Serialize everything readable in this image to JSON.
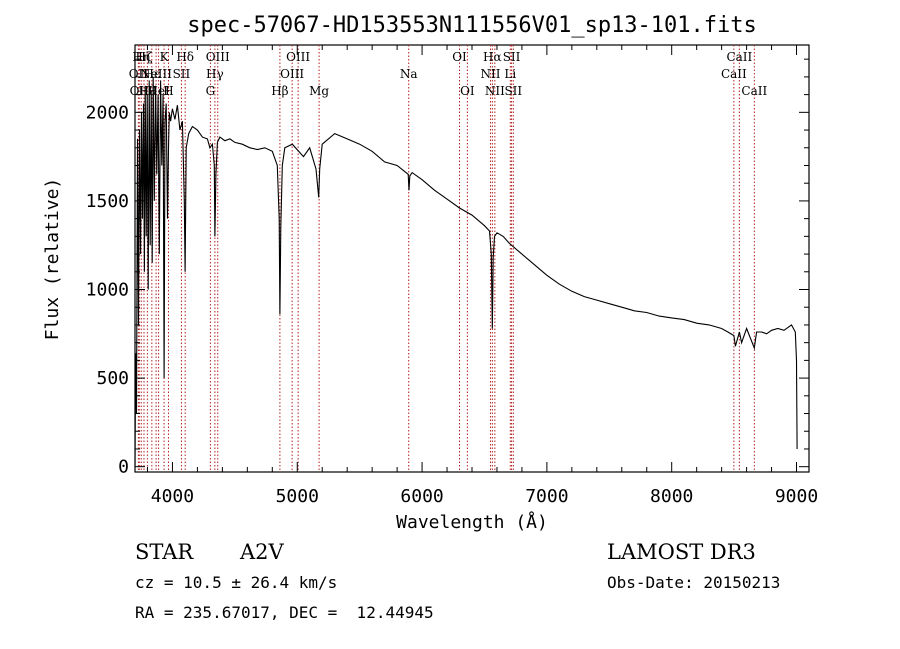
{
  "chart_data": {
    "type": "line",
    "title": "spec-57067-HD153553N111556V01_sp13-101.fits",
    "xlabel": "Wavelength (Å)",
    "ylabel": "Flux (relative)",
    "xlim": [
      3700,
      9100
    ],
    "ylim": [
      -30,
      2380
    ],
    "xticks": [
      4000,
      5000,
      6000,
      7000,
      8000,
      9000
    ],
    "xtick_labels": [
      "4000",
      "5000",
      "6000",
      "7000",
      "8000",
      "9000"
    ],
    "yticks": [
      0,
      500,
      1000,
      1500,
      2000
    ],
    "ytick_labels": [
      "0",
      "500",
      "1000",
      "1500",
      "2000"
    ],
    "series": [
      {
        "name": "spectrum",
        "x": [
          3700,
          3705,
          3712,
          3720,
          3728,
          3736,
          3745,
          3752,
          3760,
          3768,
          3775,
          3782,
          3790,
          3798,
          3806,
          3814,
          3822,
          3830,
          3838,
          3846,
          3855,
          3865,
          3875,
          3885,
          3895,
          3905,
          3915,
          3925,
          3933,
          3940,
          3950,
          3960,
          3968,
          3975,
          3985,
          4000,
          4020,
          4040,
          4060,
          4080,
          4095,
          4101,
          4110,
          4130,
          4160,
          4200,
          4240,
          4280,
          4300,
          4320,
          4335,
          4340,
          4348,
          4360,
          4380,
          4420,
          4460,
          4500,
          4560,
          4620,
          4680,
          4740,
          4800,
          4840,
          4855,
          4861,
          4868,
          4880,
          4900,
          4960,
          5050,
          5100,
          5150,
          5172,
          5180,
          5200,
          5300,
          5400,
          5500,
          5600,
          5700,
          5800,
          5889,
          5895,
          5902,
          5920,
          6000,
          6100,
          6200,
          6300,
          6400,
          6500,
          6540,
          6555,
          6563,
          6570,
          6580,
          6600,
          6650,
          6700,
          6800,
          6900,
          7000,
          7100,
          7200,
          7300,
          7400,
          7500,
          7600,
          7700,
          7800,
          7900,
          8000,
          8100,
          8200,
          8300,
          8400,
          8450,
          8498,
          8510,
          8542,
          8560,
          8600,
          8662,
          8680,
          8720,
          8760,
          8800,
          8850,
          8900,
          8960,
          8990,
          9000,
          9005
        ],
        "y": [
          0,
          640,
          300,
          1850,
          800,
          1900,
          1200,
          2000,
          1400,
          2050,
          1100,
          2150,
          1300,
          2100,
          1000,
          2180,
          1250,
          2120,
          1150,
          2200,
          1500,
          2150,
          1650,
          2100,
          1200,
          2180,
          1700,
          2100,
          500,
          1950,
          2050,
          1400,
          1800,
          2000,
          1950,
          2020,
          1960,
          2040,
          1900,
          1950,
          1500,
          1100,
          1800,
          1880,
          1920,
          1900,
          1860,
          1850,
          1800,
          1820,
          1700,
          1300,
          1650,
          1830,
          1860,
          1840,
          1850,
          1830,
          1820,
          1800,
          1790,
          1800,
          1780,
          1700,
          1400,
          860,
          1350,
          1700,
          1800,
          1820,
          1750,
          1800,
          1680,
          1520,
          1680,
          1820,
          1880,
          1850,
          1820,
          1780,
          1720,
          1700,
          1650,
          1560,
          1640,
          1660,
          1620,
          1560,
          1510,
          1460,
          1420,
          1360,
          1330,
          1200,
          780,
          1180,
          1300,
          1320,
          1300,
          1260,
          1200,
          1140,
          1080,
          1030,
          990,
          960,
          940,
          920,
          900,
          880,
          870,
          850,
          840,
          830,
          810,
          800,
          780,
          760,
          740,
          680,
          760,
          700,
          780,
          670,
          760,
          760,
          750,
          770,
          780,
          770,
          800,
          760,
          600,
          100
        ]
      }
    ],
    "lines": [
      {
        "w": 3727,
        "label": "OII",
        "row": 1
      },
      {
        "w": 3734,
        "label": "OII",
        "row": 2
      },
      {
        "w": 3750,
        "label": "Hη",
        "row": 0
      },
      {
        "w": 3772,
        "label": "Hζ",
        "row": 0
      },
      {
        "w": 3799,
        "label": "Hθ",
        "row": 2
      },
      {
        "w": 3835,
        "label": "Hε",
        "row": 1
      },
      {
        "w": 3869,
        "label": "NeIII",
        "row": 1
      },
      {
        "w": 3889,
        "label": "HeI",
        "row": 2
      },
      {
        "w": 3933,
        "label": "K",
        "row": 0
      },
      {
        "w": 3968,
        "label": "H",
        "row": 2
      },
      {
        "w": 4072,
        "label": "SII",
        "row": 1
      },
      {
        "w": 4102,
        "label": "Hδ",
        "row": 0
      },
      {
        "w": 4304,
        "label": "G",
        "row": 2
      },
      {
        "w": 4340,
        "label": "Hγ",
        "row": 1
      },
      {
        "w": 4363,
        "label": "OIII",
        "row": 0
      },
      {
        "w": 4861,
        "label": "Hβ",
        "row": 2
      },
      {
        "w": 4959,
        "label": "OIII",
        "row": 1
      },
      {
        "w": 5007,
        "label": "OIII",
        "row": 0
      },
      {
        "w": 5175,
        "label": "Mg",
        "row": 2
      },
      {
        "w": 5893,
        "label": "Na",
        "row": 1
      },
      {
        "w": 6300,
        "label": "OI",
        "row": 0
      },
      {
        "w": 6363,
        "label": "OI",
        "row": 2
      },
      {
        "w": 6548,
        "label": "NII",
        "row": 1
      },
      {
        "w": 6563,
        "label": "Hα",
        "row": 0
      },
      {
        "w": 6583,
        "label": "NII",
        "row": 2
      },
      {
        "w": 6707,
        "label": "Li",
        "row": 1
      },
      {
        "w": 6717,
        "label": "SII",
        "row": 0
      },
      {
        "w": 6731,
        "label": "SII",
        "row": 2
      },
      {
        "w": 8498,
        "label": "CaII",
        "row": 1
      },
      {
        "w": 8542,
        "label": "CaII",
        "row": 0
      },
      {
        "w": 8662,
        "label": "CaII",
        "row": 2
      }
    ]
  },
  "info": {
    "class_label": "STAR",
    "subclass": "A2V",
    "survey": "LAMOST DR3",
    "cz": "cz = 10.5 ± 26.4 km/s",
    "obs_date": "Obs-Date: 20150213",
    "coords": "RA = 235.67017, DEC =  12.44945"
  },
  "colors": {
    "line_marker": "#b22222",
    "spectrum": "#000000",
    "axes": "#000000"
  }
}
